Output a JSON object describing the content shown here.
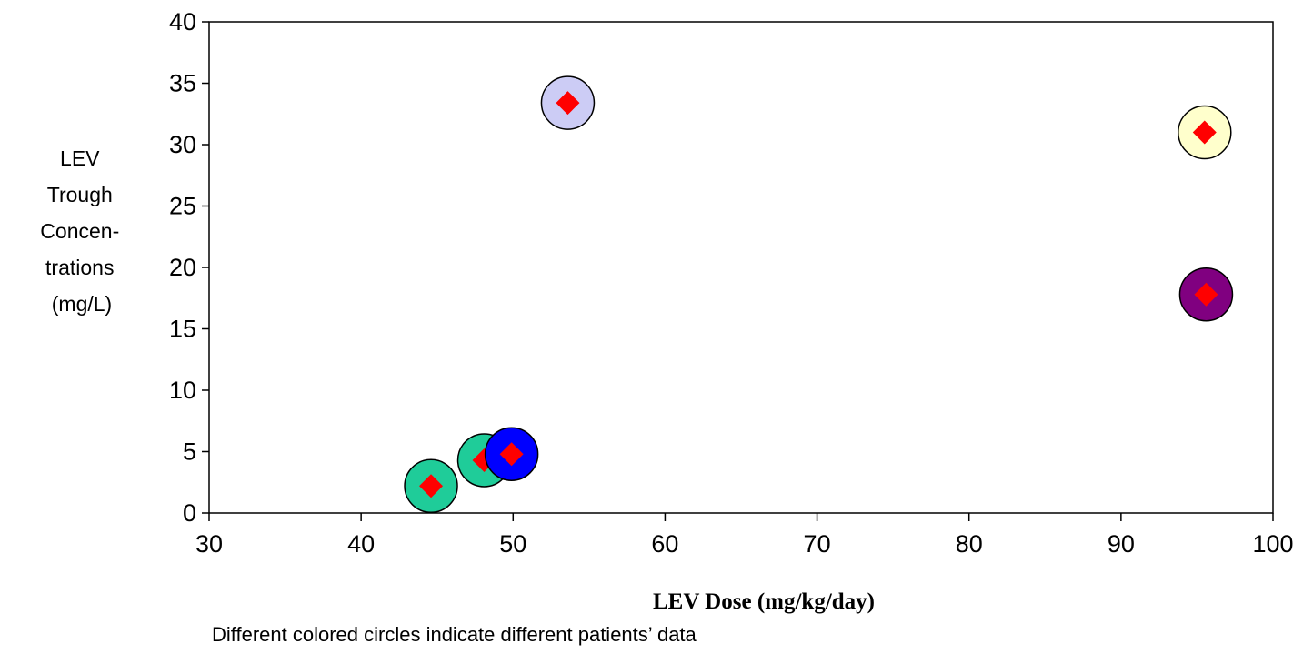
{
  "chart_data": {
    "type": "scatter",
    "title": "",
    "xlabel": "LEV Dose (mg/kg/day)",
    "ylabel_lines": [
      "LEV",
      "Trough",
      "Concen-",
      "trations",
      "(mg/L)"
    ],
    "note": "Different colored circles indicate different patients’ data",
    "xlim": [
      30,
      100
    ],
    "ylim": [
      0,
      40
    ],
    "x_ticks": [
      30,
      40,
      50,
      60,
      70,
      80,
      90,
      100
    ],
    "y_ticks": [
      0,
      5,
      10,
      15,
      20,
      25,
      30,
      35,
      40
    ],
    "grid": false,
    "points": [
      {
        "x": 44.6,
        "y": 2.2,
        "circle_color": "#1fcc99",
        "marker_color": "#ff0000"
      },
      {
        "x": 48.1,
        "y": 4.3,
        "circle_color": "#1fcc99",
        "marker_color": "#ff0000"
      },
      {
        "x": 49.9,
        "y": 4.8,
        "circle_color": "#0000ff",
        "marker_color": "#ff0000"
      },
      {
        "x": 53.6,
        "y": 33.4,
        "circle_color": "#ccccf5",
        "marker_color": "#ff0000"
      },
      {
        "x": 95.5,
        "y": 31.0,
        "circle_color": "#ffffcc",
        "marker_color": "#ff0000"
      },
      {
        "x": 95.6,
        "y": 17.8,
        "circle_color": "#800080",
        "marker_color": "#ff0000"
      }
    ]
  }
}
